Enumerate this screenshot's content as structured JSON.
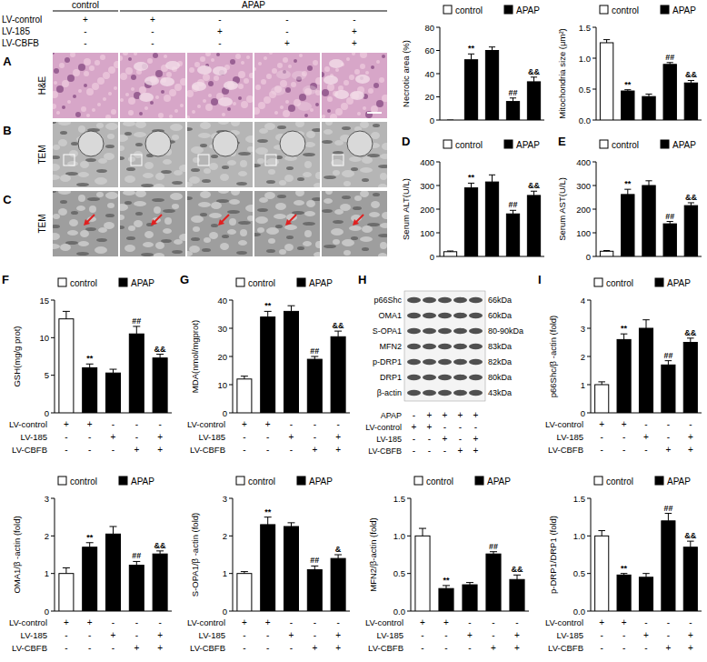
{
  "figure": {
    "header": {
      "groups": [
        "control",
        "APAP"
      ],
      "rows": [
        {
          "label": "LV-control",
          "marks": [
            "+",
            "+",
            "-",
            "-",
            "-"
          ]
        },
        {
          "label": "LV-185",
          "marks": [
            "-",
            "-",
            "+",
            "-",
            "+"
          ]
        },
        {
          "label": "LV-CBFB",
          "marks": [
            "-",
            "-",
            "-",
            "+",
            "+"
          ]
        }
      ]
    },
    "image_rows": [
      {
        "panel": "A",
        "label": "H&E"
      },
      {
        "panel": "B",
        "label": "TEM"
      },
      {
        "panel": "C",
        "label": "TEM"
      }
    ],
    "blot": {
      "panel": "H",
      "proteins": [
        {
          "name": "p66Shc",
          "size": "66kDa"
        },
        {
          "name": "OMA1",
          "size": "60kDa"
        },
        {
          "name": "S-OPA1",
          "size": "80-90kDa"
        },
        {
          "name": "MFN2",
          "size": "83kDa"
        },
        {
          "name": "p-DRP1",
          "size": "82kDa"
        },
        {
          "name": "DRP1",
          "size": "80kDa"
        },
        {
          "name": "β-actin",
          "size": "43kDa"
        }
      ],
      "rows": [
        {
          "label": "APAP",
          "marks": [
            "-",
            "+",
            "+",
            "+",
            "+"
          ]
        },
        {
          "label": "LV-control",
          "marks": [
            "+",
            "+",
            "-",
            "-",
            "-"
          ]
        },
        {
          "label": "LV-185",
          "marks": [
            "-",
            "-",
            "+",
            "-",
            "+"
          ]
        },
        {
          "label": "LV-CBFB",
          "marks": [
            "-",
            "-",
            "-",
            "+",
            "+"
          ]
        }
      ]
    }
  },
  "chart_data": [
    {
      "type": "bar",
      "ylabel": "Necrotic area (%)",
      "legend": "top",
      "categories": [
        null,
        null,
        null,
        null,
        null
      ],
      "ylim": [
        0,
        80
      ],
      "yticks": [
        0,
        20,
        40,
        60,
        80
      ],
      "series": [
        {
          "name": "control",
          "color": "#ffffff",
          "values": [
            0,
            null,
            null,
            null,
            null
          ],
          "errors": [
            0,
            null,
            null,
            null,
            null
          ]
        },
        {
          "name": "APAP",
          "color": "#000000",
          "values": [
            null,
            52,
            60,
            16,
            33
          ],
          "errors": [
            null,
            5,
            3,
            3,
            4
          ]
        }
      ],
      "annotations": [
        null,
        "**",
        null,
        "##",
        "&&"
      ]
    },
    {
      "type": "bar",
      "ylabel": "Mitochondria size (μm²)",
      "legend": "top",
      "categories": [
        null,
        null,
        null,
        null,
        null
      ],
      "ylim": [
        0,
        1.5
      ],
      "yticks": [
        {
          "value": 0,
          "label": "0.0"
        },
        0.5,
        {
          "value": 1,
          "label": "1.0"
        },
        1.5
      ],
      "series": [
        {
          "name": "control",
          "color": "#ffffff",
          "values": [
            1.25,
            null,
            null,
            null,
            null
          ],
          "errors": [
            0.05,
            null,
            null,
            null,
            null
          ]
        },
        {
          "name": "APAP",
          "color": "#000000",
          "values": [
            null,
            0.47,
            0.38,
            0.9,
            0.6
          ],
          "errors": [
            null,
            0.02,
            0.04,
            0.03,
            0.04
          ]
        }
      ],
      "annotations": [
        null,
        "**",
        null,
        "##",
        "&&"
      ]
    },
    {
      "type": "bar",
      "panel": "D",
      "ylabel": "Serum ALT(U/L)",
      "legend": "top",
      "categories": [
        null,
        null,
        null,
        null,
        null
      ],
      "ylim": [
        0,
        400
      ],
      "yticks": [
        0,
        100,
        200,
        300,
        400
      ],
      "series": [
        {
          "name": "control",
          "color": "#ffffff",
          "values": [
            20,
            null,
            null,
            null,
            null
          ],
          "errors": [
            3,
            null,
            null,
            null,
            null
          ]
        },
        {
          "name": "APAP",
          "color": "#000000",
          "values": [
            null,
            290,
            315,
            180,
            258
          ],
          "errors": [
            null,
            20,
            30,
            15,
            18
          ]
        }
      ],
      "annotations": [
        null,
        "**",
        null,
        "##",
        "&&"
      ]
    },
    {
      "type": "bar",
      "panel": "E",
      "ylabel": "Serum AST(U/L)",
      "legend": "top",
      "categories": [
        null,
        null,
        null,
        null,
        null
      ],
      "ylim": [
        0,
        400
      ],
      "yticks": [
        0,
        100,
        200,
        300,
        400
      ],
      "series": [
        {
          "name": "control",
          "color": "#ffffff",
          "values": [
            22,
            null,
            null,
            null,
            null
          ],
          "errors": [
            3,
            null,
            null,
            null,
            null
          ]
        },
        {
          "name": "APAP",
          "color": "#000000",
          "values": [
            null,
            262,
            300,
            138,
            215
          ],
          "errors": [
            null,
            22,
            20,
            10,
            12
          ]
        }
      ],
      "annotations": [
        null,
        "**",
        null,
        "##",
        "&&"
      ]
    },
    {
      "type": "bar",
      "panel": "F",
      "ylabel": "GSH(mg/g prot)",
      "legend": "top",
      "categories": [
        null,
        null,
        null,
        null,
        null
      ],
      "ylim": [
        0,
        15
      ],
      "yticks": [
        0,
        5,
        10,
        15
      ],
      "series": [
        {
          "name": "control",
          "color": "#ffffff",
          "values": [
            12.5,
            null,
            null,
            null,
            null
          ],
          "errors": [
            1,
            null,
            null,
            null,
            null
          ]
        },
        {
          "name": "APAP",
          "color": "#000000",
          "values": [
            null,
            6,
            5.3,
            10.5,
            7.3
          ],
          "errors": [
            null,
            0.5,
            0.5,
            1,
            0.5
          ]
        }
      ],
      "annotations": [
        null,
        "**",
        null,
        "##",
        "&&"
      ],
      "conditions": [
        {
          "label": "LV-control",
          "marks": [
            "+",
            "+",
            "-",
            "-",
            "-"
          ]
        },
        {
          "label": "LV-185",
          "marks": [
            "-",
            "-",
            "+",
            "-",
            "+"
          ]
        },
        {
          "label": "LV-CBFB",
          "marks": [
            "-",
            "-",
            "-",
            "+",
            "+"
          ]
        }
      ]
    },
    {
      "type": "bar",
      "panel": "G",
      "ylabel": "MDA(nmol/mgprot)",
      "legend": "top",
      "categories": [
        null,
        null,
        null,
        null,
        null
      ],
      "ylim": [
        0,
        40
      ],
      "yticks": [
        0,
        10,
        20,
        30,
        40
      ],
      "series": [
        {
          "name": "control",
          "color": "#ffffff",
          "values": [
            12,
            null,
            null,
            null,
            null
          ],
          "errors": [
            1,
            null,
            null,
            null,
            null
          ]
        },
        {
          "name": "APAP",
          "color": "#000000",
          "values": [
            null,
            34,
            36,
            19,
            27
          ],
          "errors": [
            null,
            2,
            2,
            1,
            2
          ]
        }
      ],
      "annotations": [
        null,
        "**",
        null,
        "##",
        "&&"
      ],
      "conditions": [
        {
          "label": "LV-control",
          "marks": [
            "+",
            "+",
            "-",
            "-",
            "-"
          ]
        },
        {
          "label": "LV-185",
          "marks": [
            "-",
            "-",
            "+",
            "-",
            "+"
          ]
        },
        {
          "label": "LV-CBFB",
          "marks": [
            "-",
            "-",
            "-",
            "+",
            "+"
          ]
        }
      ]
    },
    {
      "type": "bar",
      "panel": "I",
      "ylabel": "p66Shc/β -actin (fold)",
      "legend": "top",
      "categories": [
        null,
        null,
        null,
        null,
        null
      ],
      "ylim": [
        0,
        4
      ],
      "yticks": [
        0,
        1,
        2,
        3,
        4
      ],
      "series": [
        {
          "name": "control",
          "color": "#ffffff",
          "values": [
            1.0,
            null,
            null,
            null,
            null
          ],
          "errors": [
            0.1,
            null,
            null,
            null,
            null
          ]
        },
        {
          "name": "APAP",
          "color": "#000000",
          "values": [
            null,
            2.6,
            3.0,
            1.7,
            2.5
          ],
          "errors": [
            null,
            0.2,
            0.3,
            0.15,
            0.15
          ]
        }
      ],
      "annotations": [
        null,
        "**",
        null,
        "##",
        "&&"
      ],
      "conditions": [
        {
          "label": "LV-control",
          "marks": [
            "+",
            "+",
            "-",
            "-",
            "-"
          ]
        },
        {
          "label": "LV-185",
          "marks": [
            "-",
            "-",
            "+",
            "-",
            "+"
          ]
        },
        {
          "label": "LV-CBFB",
          "marks": [
            "-",
            "-",
            "-",
            "+",
            "+"
          ]
        }
      ]
    },
    {
      "type": "bar",
      "ylabel": "OMA1/β -actin (fold)",
      "legend": "top",
      "categories": [
        null,
        null,
        null,
        null,
        null
      ],
      "ylim": [
        0,
        3
      ],
      "yticks": [
        0,
        1,
        2,
        3
      ],
      "series": [
        {
          "name": "control",
          "color": "#ffffff",
          "values": [
            1.0,
            null,
            null,
            null,
            null
          ],
          "errors": [
            0.15,
            null,
            null,
            null,
            null
          ]
        },
        {
          "name": "APAP",
          "color": "#000000",
          "values": [
            null,
            1.7,
            2.05,
            1.22,
            1.52
          ],
          "errors": [
            null,
            0.12,
            0.2,
            0.1,
            0.08
          ]
        }
      ],
      "annotations": [
        null,
        "**",
        null,
        "##",
        "&&"
      ],
      "conditions": [
        {
          "label": "LV-control",
          "marks": [
            "+",
            "+",
            "-",
            "-",
            "-"
          ]
        },
        {
          "label": "LV-185",
          "marks": [
            "-",
            "-",
            "+",
            "-",
            "+"
          ]
        },
        {
          "label": "LV-CBFB",
          "marks": [
            "-",
            "-",
            "-",
            "+",
            "+"
          ]
        }
      ]
    },
    {
      "type": "bar",
      "ylabel": "S-OPA1/β -actin (fold)",
      "legend": "top",
      "categories": [
        null,
        null,
        null,
        null,
        null
      ],
      "ylim": [
        0,
        3
      ],
      "yticks": [
        0,
        1,
        2,
        3
      ],
      "series": [
        {
          "name": "control",
          "color": "#ffffff",
          "values": [
            1.0,
            null,
            null,
            null,
            null
          ],
          "errors": [
            0.05,
            null,
            null,
            null,
            null
          ]
        },
        {
          "name": "APAP",
          "color": "#000000",
          "values": [
            null,
            2.3,
            2.25,
            1.1,
            1.4
          ],
          "errors": [
            null,
            0.2,
            0.1,
            0.1,
            0.1
          ]
        }
      ],
      "annotations": [
        null,
        "**",
        null,
        "##",
        "&"
      ],
      "conditions": [
        {
          "label": "LV-control",
          "marks": [
            "+",
            "+",
            "-",
            "-",
            "-"
          ]
        },
        {
          "label": "LV-185",
          "marks": [
            "-",
            "-",
            "+",
            "-",
            "+"
          ]
        },
        {
          "label": "LV-CBFB",
          "marks": [
            "-",
            "-",
            "-",
            "+",
            "+"
          ]
        }
      ]
    },
    {
      "type": "bar",
      "ylabel": "MFN2/β-actin (fold)",
      "legend": "top",
      "categories": [
        null,
        null,
        null,
        null,
        null
      ],
      "ylim": [
        0,
        1.5
      ],
      "yticks": [
        {
          "value": 0,
          "label": "0.0"
        },
        0.5,
        {
          "value": 1,
          "label": "1.0"
        },
        1.5
      ],
      "series": [
        {
          "name": "control",
          "color": "#ffffff",
          "values": [
            1.0,
            null,
            null,
            null,
            null
          ],
          "errors": [
            0.1,
            null,
            null,
            null,
            null
          ]
        },
        {
          "name": "APAP",
          "color": "#000000",
          "values": [
            null,
            0.3,
            0.35,
            0.76,
            0.42
          ],
          "errors": [
            null,
            0.04,
            0.03,
            0.03,
            0.06
          ]
        }
      ],
      "annotations": [
        null,
        "**",
        null,
        "##",
        "&&"
      ],
      "conditions": [
        {
          "label": "LV-control",
          "marks": [
            "+",
            "+",
            "-",
            "-",
            "-"
          ]
        },
        {
          "label": "LV-185",
          "marks": [
            "-",
            "-",
            "+",
            "-",
            "+"
          ]
        },
        {
          "label": "LV-CBFB",
          "marks": [
            "-",
            "-",
            "-",
            "+",
            "+"
          ]
        }
      ]
    },
    {
      "type": "bar",
      "ylabel": "p-DRP1/DRP1 (fold)",
      "legend": "top",
      "categories": [
        null,
        null,
        null,
        null,
        null
      ],
      "ylim": [
        0,
        1.5
      ],
      "yticks": [
        {
          "value": 0,
          "label": "0.0"
        },
        0.5,
        {
          "value": 1,
          "label": "1.0"
        },
        1.5
      ],
      "series": [
        {
          "name": "control",
          "color": "#ffffff",
          "values": [
            1.0,
            null,
            null,
            null,
            null
          ],
          "errors": [
            0.07,
            null,
            null,
            null,
            null
          ]
        },
        {
          "name": "APAP",
          "color": "#000000",
          "values": [
            null,
            0.48,
            0.45,
            1.2,
            0.85
          ],
          "errors": [
            null,
            0.02,
            0.05,
            0.1,
            0.08
          ]
        }
      ],
      "annotations": [
        null,
        "**",
        null,
        "##",
        "&&"
      ],
      "conditions": [
        {
          "label": "LV-control",
          "marks": [
            "+",
            "+",
            "-",
            "-",
            "-"
          ]
        },
        {
          "label": "LV-185",
          "marks": [
            "-",
            "-",
            "+",
            "-",
            "+"
          ]
        },
        {
          "label": "LV-CBFB",
          "marks": [
            "-",
            "-",
            "-",
            "+",
            "+"
          ]
        }
      ]
    }
  ]
}
